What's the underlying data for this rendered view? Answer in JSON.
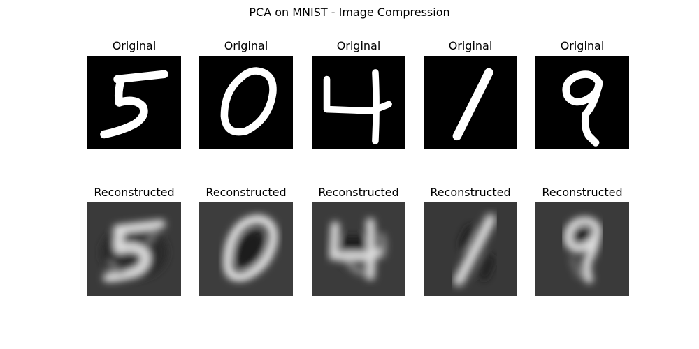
{
  "figure": {
    "title": "PCA on MNIST - Image Compression"
  },
  "rows": [
    {
      "kind": "original",
      "label": "Original",
      "background": "#000000",
      "stroke": "#ffffff"
    },
    {
      "kind": "reconstructed",
      "label": "Reconstructed",
      "background": "#3a3a3a",
      "stroke": "#e8e8e8"
    }
  ],
  "digits": [
    "5",
    "0",
    "4",
    "1",
    "9"
  ]
}
